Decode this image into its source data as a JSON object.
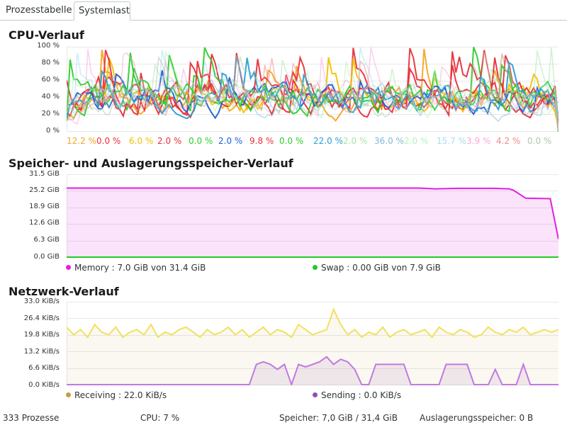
{
  "tabs": [
    {
      "label": "Prozesstabelle",
      "active": false
    },
    {
      "label": "Systemlast",
      "active": true
    }
  ],
  "cpu": {
    "title": "CPU-Verlauf",
    "y_ticks": [
      "100 %",
      "80 %",
      "60 %",
      "40 %",
      "20 %",
      "0 %"
    ],
    "cores": [
      {
        "value": "12.2 %",
        "color": "#f5a623"
      },
      {
        "value": "0.0 %",
        "color": "#e8303a"
      },
      {
        "value": "6.0 %",
        "color": "#f2c200"
      },
      {
        "value": "2.0 %",
        "color": "#e8303a"
      },
      {
        "value": "0.0 %",
        "color": "#2ecc2e"
      },
      {
        "value": "2.0 %",
        "color": "#1f5fd6"
      },
      {
        "value": "9.8 %",
        "color": "#e8303a"
      },
      {
        "value": "0.0 %",
        "color": "#2ecc2e"
      },
      {
        "value": "22.0 %",
        "color": "#2a9fd6"
      },
      {
        "value": "2.0 %",
        "color": "#a8e6a8"
      },
      {
        "value": "36.0 %",
        "color": "#7fb9d8"
      },
      {
        "value": "2.0 %",
        "color": "#b8f0b8"
      },
      {
        "value": "15.7 %",
        "color": "#a6dcf0"
      },
      {
        "value": "3.9 %",
        "color": "#f7a8d8"
      },
      {
        "value": "4.2 %",
        "color": "#f08a8a"
      },
      {
        "value": "0.0 %",
        "color": "#a8c8a8"
      }
    ]
  },
  "memory": {
    "title": "Speicher- und Auslagerungsspeicher-Verlauf",
    "y_ticks": [
      "31.5 GiB",
      "25.2 GiB",
      "18.9 GiB",
      "12.6 GiB",
      "6.3 GiB",
      "0.0 GiB"
    ],
    "memory_label": "Memory : 7.0 GiB von 31.4 GiB",
    "swap_label": "Swap : 0.00 GiB von 7.9 GiB",
    "memory_color": "#e020e0",
    "swap_color": "#22cc22"
  },
  "network": {
    "title": "Netzwerk-Verlauf",
    "y_ticks": [
      "33.0 KiB/s",
      "26.4 KiB/s",
      "19.8 KiB/s",
      "13.2 KiB/s",
      "6.6 KiB/s",
      "0.0 KiB/s"
    ],
    "receiving_label": "Receiving : 22.0 KiB/s",
    "sending_label": "Sending : 0.0 KiB/s",
    "receiving_color": "#c0a040",
    "sending_color": "#9050b0"
  },
  "statusbar": {
    "processes": "333 Prozesse",
    "cpu": "CPU: 7 %",
    "memory": "Speicher: 7,0 GiB / 31,4 GiB",
    "swap": "Auslagerungsspeicher: 0 B"
  },
  "chart_data": [
    {
      "type": "line",
      "title": "CPU-Verlauf",
      "ylim": [
        0,
        100
      ],
      "series_current_values": [
        12.2,
        0.0,
        6.0,
        2.0,
        0.0,
        2.0,
        9.8,
        0.0,
        22.0,
        2.0,
        36.0,
        2.0,
        15.7,
        3.9,
        4.2,
        0.0
      ]
    },
    {
      "type": "area",
      "title": "Speicher- und Auslagerungsspeicher-Verlauf",
      "ylim": [
        0,
        31.5
      ],
      "x": [
        0,
        100,
        200,
        300,
        350,
        400,
        430,
        450,
        480,
        500,
        520,
        540,
        545,
        560,
        590,
        600
      ],
      "series": [
        {
          "name": "Memory",
          "values": [
            26.3,
            26.3,
            26.3,
            26.3,
            26.3,
            26.3,
            26.3,
            26.0,
            26.2,
            26.2,
            26.2,
            26.0,
            25.5,
            22.5,
            22.3,
            7.0
          ]
        },
        {
          "name": "Swap",
          "values": [
            0,
            0,
            0,
            0,
            0,
            0,
            0,
            0,
            0,
            0,
            0,
            0,
            0,
            0,
            0,
            0
          ]
        }
      ]
    },
    {
      "type": "area",
      "title": "Netzwerk-Verlauf",
      "ylim": [
        0,
        33.0
      ],
      "x": [
        0,
        10,
        20,
        30,
        40,
        50,
        60,
        70,
        80,
        90,
        100,
        110,
        120,
        130,
        140,
        150,
        160,
        170,
        180,
        190,
        200,
        210,
        220,
        230,
        240,
        250,
        260,
        270,
        280,
        290,
        300,
        310,
        320,
        330,
        340,
        350,
        360,
        370,
        380,
        390,
        400,
        410,
        420,
        430,
        440,
        450,
        460,
        470,
        480,
        490,
        500,
        510,
        520,
        530,
        540,
        550,
        560,
        570,
        580,
        590,
        600,
        610,
        620,
        630,
        640,
        650,
        660,
        670,
        680,
        690,
        700
      ],
      "series": [
        {
          "name": "Receiving",
          "values": [
            23,
            20,
            22,
            19,
            24,
            21,
            20,
            23,
            19,
            21,
            22,
            20,
            24,
            19,
            21,
            20,
            22,
            23,
            21,
            19,
            22,
            20,
            21,
            23,
            20,
            22,
            19,
            21,
            23,
            20,
            22,
            21,
            19,
            24,
            22,
            20,
            21,
            22,
            30,
            24,
            20,
            22,
            19,
            21,
            20,
            23,
            19,
            21,
            22,
            20,
            21,
            22,
            19,
            23,
            21,
            20,
            22,
            21,
            19,
            20,
            23,
            21,
            20,
            22,
            21,
            23,
            20,
            21,
            22,
            21,
            22
          ]
        },
        {
          "name": "Sending",
          "values": [
            0,
            0,
            0,
            0,
            0,
            0,
            0,
            0,
            0,
            0,
            0,
            0,
            0,
            0,
            0,
            0,
            0,
            0,
            0,
            0,
            0,
            0,
            0,
            0,
            0,
            0,
            0,
            8,
            9,
            8,
            6,
            8,
            0,
            8,
            7,
            8,
            9,
            11,
            8,
            10,
            9,
            6,
            0,
            0,
            8,
            8,
            8,
            8,
            8,
            0,
            0,
            0,
            0,
            0,
            8,
            8,
            8,
            8,
            0,
            0,
            0,
            6,
            0,
            0,
            0,
            8,
            0,
            0,
            0,
            0,
            0
          ]
        }
      ]
    }
  ]
}
